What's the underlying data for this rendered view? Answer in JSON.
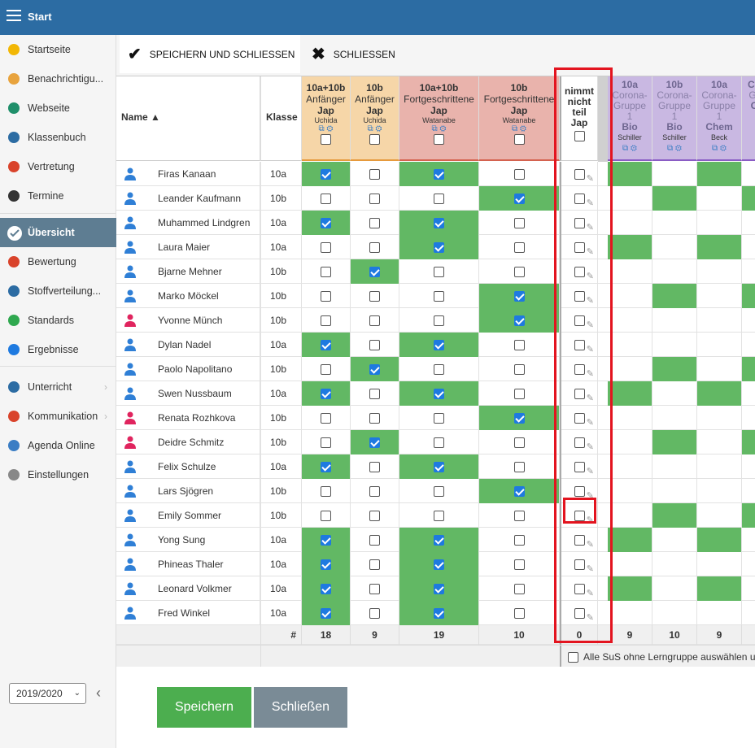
{
  "app": {
    "title": "Start"
  },
  "sidebar": {
    "items": [
      {
        "label": "Startseite",
        "icon": "star-icon",
        "color": "#f2b705"
      },
      {
        "label": "Benachrichtigu...",
        "icon": "envelope-icon",
        "color": "#e8a33d"
      },
      {
        "label": "Webseite",
        "icon": "house-icon",
        "color": "#1f8f6a"
      },
      {
        "label": "Klassenbuch",
        "icon": "book-icon",
        "color": "#2c6ca3"
      },
      {
        "label": "Vertretung",
        "icon": "substitute-icon",
        "color": "#d9432b"
      },
      {
        "label": "Termine",
        "icon": "calendar-icon",
        "color": "#333333"
      },
      {
        "label": "Übersicht",
        "icon": "check-circle-icon",
        "color": "#ffffff",
        "active": true
      },
      {
        "label": "Bewertung",
        "icon": "grading-icon",
        "color": "#d9432b"
      },
      {
        "label": "Stoffverteilung...",
        "icon": "briefcase-icon",
        "color": "#2c6ca3"
      },
      {
        "label": "Standards",
        "icon": "shield-icon",
        "color": "#2fa84f"
      },
      {
        "label": "Ergebnisse",
        "icon": "bar-chart-icon",
        "color": "#1e7ae0"
      },
      {
        "label": "Unterricht",
        "icon": "open-book-icon",
        "color": "#2c6ca3",
        "chevron": "›"
      },
      {
        "label": "Kommunikation",
        "icon": "chat-icon",
        "color": "#d9432b",
        "chevron": "›"
      },
      {
        "label": "Agenda Online",
        "icon": "pen-icon",
        "color": "#3a7dc4"
      },
      {
        "label": "Einstellungen",
        "icon": "gear-icon",
        "color": "#888888"
      }
    ],
    "year": "2019/2020"
  },
  "toolbar": {
    "save_close": "SPEICHERN UND SCHLIESSEN",
    "close": "SCHLIESSEN"
  },
  "table": {
    "header_name": "Name ▲",
    "header_klasse": "Klasse",
    "groups": [
      {
        "line1": "10a+10b",
        "line2": "Anfänger",
        "line3": "Jap",
        "teacher": "Uchida",
        "color": "#f6d6a8"
      },
      {
        "line1": "10b",
        "line2": "Anfänger",
        "line3": "Jap",
        "teacher": "Uchida",
        "color": "#f6d6a8"
      },
      {
        "line1": "10a+10b",
        "line2": "Fortgeschrittene",
        "line3": "Jap",
        "teacher": "Watanabe",
        "color": "#e9b3ac"
      },
      {
        "line1": "10b",
        "line2": "Fortgeschrittene",
        "line3": "Jap",
        "teacher": "Watanabe",
        "color": "#e9b3ac"
      }
    ],
    "notpart_header": [
      "nimmt",
      "nicht",
      "teil",
      "Jap"
    ],
    "corona": [
      {
        "line1": "10a",
        "line2": "Corona-",
        "line3": "Gruppe",
        "line4": "1",
        "subject": "Bio",
        "teacher": "Schiller"
      },
      {
        "line1": "10b",
        "line2": "Corona-",
        "line3": "Gruppe",
        "line4": "1",
        "subject": "Bio",
        "teacher": "Schiller"
      },
      {
        "line1": "10a",
        "line2": "Corona-",
        "line3": "Gruppe",
        "line4": "1",
        "subject": "Chem",
        "teacher": "Beck"
      },
      {
        "line1": "Co",
        "line2": "Gr",
        "line3": "",
        "line4": "",
        "subject": "C",
        "teacher": ""
      }
    ],
    "students": [
      {
        "name": "Firas Kanaan",
        "klasse": "10a",
        "gender": "m",
        "groups": [
          1,
          0,
          1,
          0
        ],
        "corona": [
          1,
          0,
          1,
          0
        ]
      },
      {
        "name": "Leander Kaufmann",
        "klasse": "10b",
        "gender": "m",
        "groups": [
          0,
          0,
          0,
          1
        ],
        "corona": [
          0,
          1,
          0,
          1
        ]
      },
      {
        "name": "Muhammed Lindgren",
        "klasse": "10a",
        "gender": "m",
        "groups": [
          1,
          0,
          1,
          0
        ],
        "corona": [
          0,
          0,
          0,
          0
        ]
      },
      {
        "name": "Laura Maier",
        "klasse": "10a",
        "gender": "m",
        "groups": [
          0,
          0,
          1,
          0
        ],
        "corona": [
          1,
          0,
          1,
          0
        ]
      },
      {
        "name": "Bjarne Mehner",
        "klasse": "10b",
        "gender": "m",
        "groups": [
          0,
          1,
          0,
          0
        ],
        "corona": [
          0,
          0,
          0,
          0
        ]
      },
      {
        "name": "Marko Möckel",
        "klasse": "10b",
        "gender": "m",
        "groups": [
          0,
          0,
          0,
          1
        ],
        "corona": [
          0,
          1,
          0,
          1
        ]
      },
      {
        "name": "Yvonne Münch",
        "klasse": "10b",
        "gender": "f",
        "groups": [
          0,
          0,
          0,
          1
        ],
        "corona": [
          0,
          0,
          0,
          0
        ]
      },
      {
        "name": "Dylan Nadel",
        "klasse": "10a",
        "gender": "m",
        "groups": [
          1,
          0,
          1,
          0
        ],
        "corona": [
          0,
          0,
          0,
          0
        ]
      },
      {
        "name": "Paolo Napolitano",
        "klasse": "10b",
        "gender": "m",
        "groups": [
          0,
          1,
          0,
          0
        ],
        "corona": [
          0,
          1,
          0,
          1
        ]
      },
      {
        "name": "Swen Nussbaum",
        "klasse": "10a",
        "gender": "m",
        "groups": [
          1,
          0,
          1,
          0
        ],
        "corona": [
          1,
          0,
          1,
          0
        ]
      },
      {
        "name": "Renata Rozhkova",
        "klasse": "10b",
        "gender": "f",
        "groups": [
          0,
          0,
          0,
          1
        ],
        "corona": [
          0,
          0,
          0,
          0
        ]
      },
      {
        "name": "Deidre Schmitz",
        "klasse": "10b",
        "gender": "f",
        "groups": [
          0,
          1,
          0,
          0
        ],
        "corona": [
          0,
          1,
          0,
          1
        ]
      },
      {
        "name": "Felix Schulze",
        "klasse": "10a",
        "gender": "m",
        "groups": [
          1,
          0,
          1,
          0
        ],
        "corona": [
          0,
          0,
          0,
          0
        ]
      },
      {
        "name": "Lars Sjögren",
        "klasse": "10b",
        "gender": "m",
        "groups": [
          0,
          0,
          0,
          1
        ],
        "corona": [
          0,
          0,
          0,
          0
        ]
      },
      {
        "name": "Emily Sommer",
        "klasse": "10b",
        "gender": "m",
        "groups": [
          0,
          0,
          0,
          0
        ],
        "corona": [
          0,
          1,
          0,
          1
        ]
      },
      {
        "name": "Yong Sung",
        "klasse": "10a",
        "gender": "m",
        "groups": [
          1,
          0,
          1,
          0
        ],
        "corona": [
          1,
          0,
          1,
          0
        ]
      },
      {
        "name": "Phineas Thaler",
        "klasse": "10a",
        "gender": "m",
        "groups": [
          1,
          0,
          1,
          0
        ],
        "corona": [
          0,
          0,
          0,
          0
        ]
      },
      {
        "name": "Leonard Volkmer",
        "klasse": "10a",
        "gender": "m",
        "groups": [
          1,
          0,
          1,
          0
        ],
        "corona": [
          1,
          0,
          1,
          0
        ]
      },
      {
        "name": "Fred Winkel",
        "klasse": "10a",
        "gender": "m",
        "groups": [
          1,
          0,
          1,
          0
        ],
        "corona": [
          0,
          0,
          0,
          0
        ]
      }
    ],
    "footer_label": "#",
    "footer_counts": [
      "18",
      "9",
      "19",
      "10"
    ],
    "footer_notpart": "0",
    "footer_corona": [
      "9",
      "10",
      "9",
      ""
    ],
    "select_all_label": "Alle SuS ohne Lerngruppe auswählen u"
  },
  "actions": {
    "save": "Speichern",
    "close": "Schließen"
  },
  "colors": {
    "topbar": "#2c6ca3",
    "green": "#62b864",
    "highlight": "#e3141f",
    "corona_header": "#c9b8e2"
  }
}
